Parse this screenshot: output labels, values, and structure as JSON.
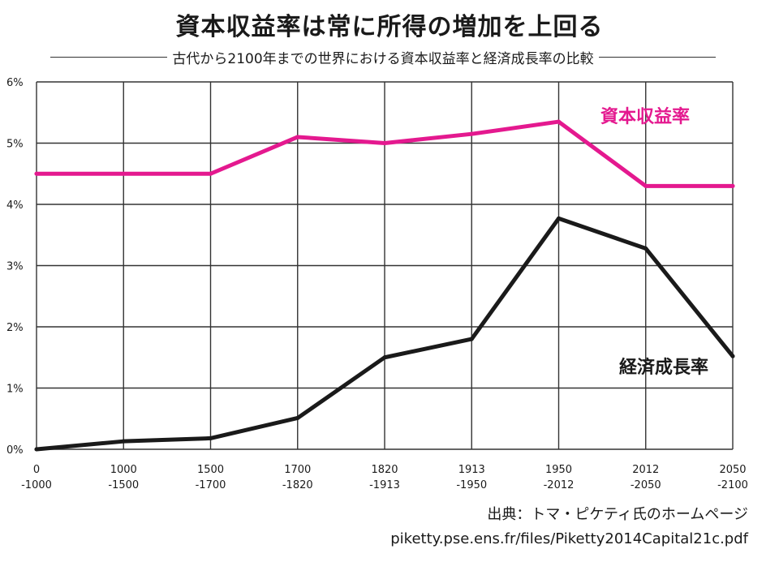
{
  "title": "資本収益率は常に所得の増加を上回る",
  "subtitle": "古代から2100年までの世界における資本収益率と経済成長率の比較",
  "source": {
    "line1": "出典：トマ・ピケティ氏のホームページ",
    "line2": "piketty.pse.ens.fr/files/Piketty2014Capital21c.pdf"
  },
  "chart_data": {
    "type": "line",
    "title": "資本収益率は常に所得の増加を上回る",
    "subtitle": "古代から2100年までの世界における資本収益率と経済成長率の比較",
    "xlabel": "",
    "ylabel": "",
    "categories": [
      [
        "0",
        "-1000"
      ],
      [
        "1000",
        "-1500"
      ],
      [
        "1500",
        "-1700"
      ],
      [
        "1700",
        "-1820"
      ],
      [
        "1820",
        "-1913"
      ],
      [
        "1913",
        "-1950"
      ],
      [
        "1950",
        "-2012"
      ],
      [
        "2012",
        "-2050"
      ],
      [
        "2050",
        "-2100"
      ]
    ],
    "yticks": [
      "0%",
      "1%",
      "2%",
      "3%",
      "4%",
      "5%",
      "6%"
    ],
    "ylim": [
      0,
      6
    ],
    "grid": true,
    "series": [
      {
        "name": "資本収益率",
        "color": "#e4198f",
        "values": [
          4.5,
          4.5,
          4.5,
          5.1,
          5.0,
          5.15,
          5.35,
          4.3,
          4.3
        ]
      },
      {
        "name": "経済成長率",
        "color": "#1a1a1a",
        "values": [
          0.0,
          0.13,
          0.18,
          0.51,
          1.5,
          1.8,
          3.77,
          3.28,
          1.52
        ]
      }
    ]
  }
}
